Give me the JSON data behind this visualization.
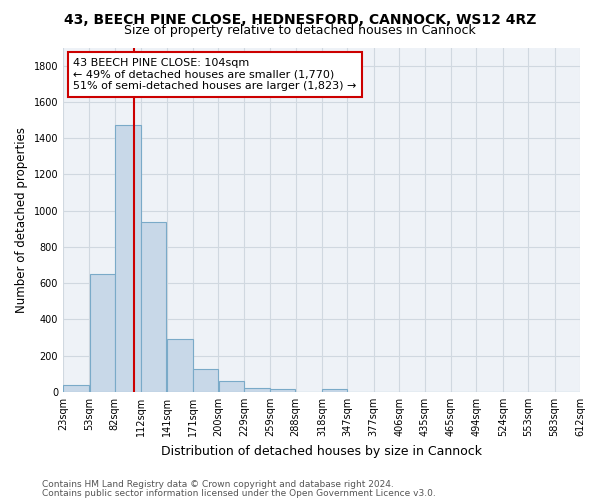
{
  "title": "43, BEECH PINE CLOSE, HEDNESFORD, CANNOCK, WS12 4RZ",
  "subtitle": "Size of property relative to detached houses in Cannock",
  "xlabel": "Distribution of detached houses by size in Cannock",
  "ylabel": "Number of detached properties",
  "bar_values": [
    38,
    650,
    1470,
    935,
    290,
    125,
    60,
    22,
    15,
    0,
    15,
    0,
    0,
    0,
    0,
    0,
    0,
    0,
    0,
    0
  ],
  "bin_edges": [
    23,
    53,
    82,
    112,
    141,
    171,
    200,
    229,
    259,
    288,
    318,
    347,
    377,
    406,
    435,
    465,
    494,
    524,
    553,
    583,
    612
  ],
  "bar_color": "#c8d8e8",
  "bar_edge_color": "#7aaac8",
  "property_size": 104,
  "vline_color": "#cc0000",
  "annotation_line1": "43 BEECH PINE CLOSE: 104sqm",
  "annotation_line2": "← 49% of detached houses are smaller (1,770)",
  "annotation_line3": "51% of semi-detached houses are larger (1,823) →",
  "annotation_box_color": "#cc0000",
  "ylim": [
    0,
    1900
  ],
  "yticks": [
    0,
    200,
    400,
    600,
    800,
    1000,
    1200,
    1400,
    1600,
    1800
  ],
  "background_color": "#eef2f7",
  "grid_color": "#d0d8e0",
  "footer_line1": "Contains HM Land Registry data © Crown copyright and database right 2024.",
  "footer_line2": "Contains public sector information licensed under the Open Government Licence v3.0.",
  "title_fontsize": 10,
  "subtitle_fontsize": 9,
  "tick_fontsize": 7,
  "ylabel_fontsize": 8.5,
  "xlabel_fontsize": 9,
  "annotation_fontsize": 8,
  "footer_fontsize": 6.5
}
